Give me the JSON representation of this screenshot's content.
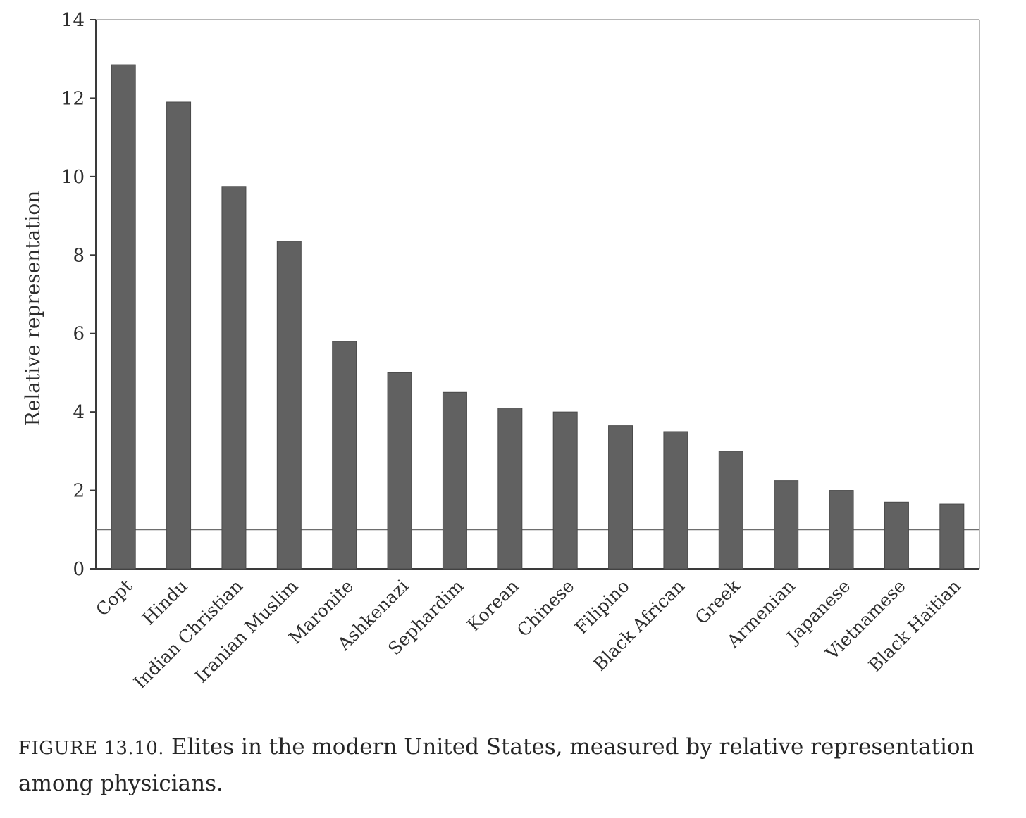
{
  "chart_data": {
    "type": "bar",
    "ylabel": "Relative representation",
    "ylim": [
      0,
      14
    ],
    "yticks": [
      0,
      2,
      4,
      6,
      8,
      10,
      12,
      14
    ],
    "reference_line": 1,
    "grid": false,
    "bar_color": "#616161",
    "categories": [
      "Copt",
      "Hindu",
      "Indian Christian",
      "Iranian Muslim",
      "Maronite",
      "Ashkenazi",
      "Sephardim",
      "Korean",
      "Chinese",
      "Filipino",
      "Black African",
      "Greek",
      "Armenian",
      "Japanese",
      "Vietnamese",
      "Black Haitian"
    ],
    "values": [
      12.85,
      11.9,
      9.75,
      8.35,
      5.8,
      5.0,
      4.5,
      4.1,
      4.0,
      3.65,
      3.5,
      3.0,
      2.25,
      2.0,
      1.7,
      1.65
    ]
  },
  "caption": {
    "label": "FIGURE 13.10.",
    "text": "Elites in the modern United States, measured by relative representation among physicians."
  }
}
